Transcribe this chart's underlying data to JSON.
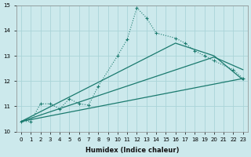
{
  "xlabel": "Humidex (Indice chaleur)",
  "ylabel": "",
  "bg_color": "#cce9ec",
  "line_color": "#1a7a6e",
  "grid_color": "#aad4d8",
  "ylim": [
    10,
    15
  ],
  "xlim": [
    -0.5,
    23.5
  ],
  "yticks": [
    10,
    11,
    12,
    13,
    14,
    15
  ],
  "xticks": [
    0,
    1,
    2,
    3,
    4,
    5,
    6,
    7,
    8,
    9,
    10,
    11,
    12,
    13,
    14,
    15,
    16,
    17,
    18,
    19,
    20,
    21,
    22,
    23
  ],
  "lines": [
    {
      "x": [
        0,
        1,
        2,
        3,
        4,
        5,
        6,
        7,
        8,
        10,
        11,
        12,
        13,
        14,
        16,
        17,
        18,
        19,
        20,
        22,
        23
      ],
      "y": [
        10.4,
        10.4,
        11.1,
        11.1,
        10.9,
        11.3,
        11.1,
        11.05,
        11.8,
        13.0,
        13.65,
        14.9,
        14.5,
        13.9,
        13.7,
        13.5,
        13.2,
        13.0,
        12.8,
        12.45,
        12.1
      ],
      "style": "dotted",
      "marker": "+"
    },
    {
      "x": [
        0,
        23
      ],
      "y": [
        10.4,
        12.1
      ],
      "style": "solid",
      "marker": null
    },
    {
      "x": [
        0,
        20,
        23
      ],
      "y": [
        10.4,
        12.95,
        12.45
      ],
      "style": "solid",
      "marker": null
    },
    {
      "x": [
        0,
        16,
        20,
        23
      ],
      "y": [
        10.4,
        13.5,
        13.0,
        12.05
      ],
      "style": "solid",
      "marker": null
    }
  ]
}
